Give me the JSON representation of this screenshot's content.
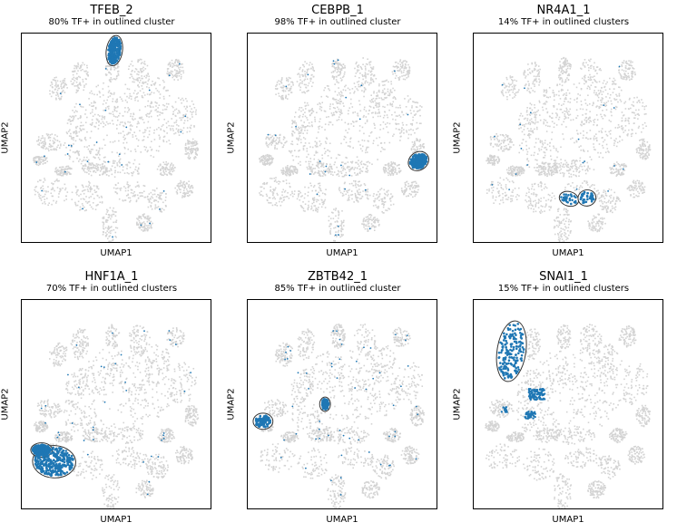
{
  "chart_data": [
    {
      "type": "scatter",
      "title": "TFEB_2",
      "subtitle": "80% TF+ in outlined cluster",
      "xlabel": "UMAP1",
      "ylabel": "UMAP2",
      "highlight": "top-left island",
      "pct_tf_positive": 80
    },
    {
      "type": "scatter",
      "title": "CEBPB_1",
      "subtitle": "98% TF+ in outlined cluster",
      "xlabel": "UMAP1",
      "ylabel": "UMAP2",
      "highlight": "right island",
      "pct_tf_positive": 98
    },
    {
      "type": "scatter",
      "title": "NR4A1_1",
      "subtitle": "14% TF+ in outlined clusters",
      "xlabel": "UMAP1",
      "ylabel": "UMAP2",
      "highlight": "lower-middle islands",
      "pct_tf_positive": 14
    },
    {
      "type": "scatter",
      "title": "HNF1A_1",
      "subtitle": "70% TF+ in outlined clusters",
      "xlabel": "UMAP1",
      "ylabel": "UMAP2",
      "highlight": "bottom-left island",
      "pct_tf_positive": 70
    },
    {
      "type": "scatter",
      "title": "ZBTB42_1",
      "subtitle": "85% TF+ in outlined cluster",
      "xlabel": "UMAP1",
      "ylabel": "UMAP2",
      "highlight": "left island",
      "pct_tf_positive": 85
    },
    {
      "type": "scatter",
      "title": "SNAI1_1",
      "subtitle": "15% TF+ in outlined clusters",
      "xlabel": "UMAP1",
      "ylabel": "UMAP2",
      "highlight": "upper-left island",
      "pct_tf_positive": 15
    }
  ],
  "colors": {
    "background_cells": "#d3d3d3",
    "tf_positive": "#1f77b4",
    "outline": "#333333"
  },
  "grid": false,
  "ticks": false
}
